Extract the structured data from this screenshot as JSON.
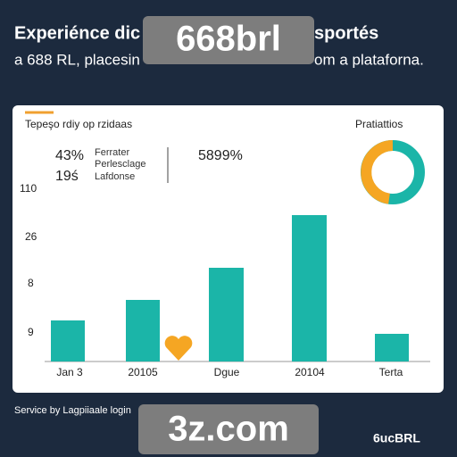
{
  "header": {
    "line1_left": "Experiénce dic",
    "line1_right": "sportés",
    "line2_left": "a 688 RL, placesin",
    "line2_right": "om a plataforna.",
    "badge": "668brl"
  },
  "card": {
    "title": "Tepeşo rdiy op rzidaas",
    "side_title": "Pratiattios",
    "stats": {
      "stat1": "43%",
      "stat2": "19ś",
      "labels": [
        "Ferrater",
        "Perlesclage",
        "Lafdonse"
      ],
      "stat3": "5899%"
    },
    "y_labels": [
      "110",
      "26",
      "8",
      "9"
    ],
    "x_labels": [
      "Jan 3",
      "20105",
      "Dgue",
      "20104",
      "Terta"
    ]
  },
  "footer": {
    "left": "Service by Lagpiiaale login",
    "badge": "3z.com",
    "brand": "6ucBRL"
  }
}
